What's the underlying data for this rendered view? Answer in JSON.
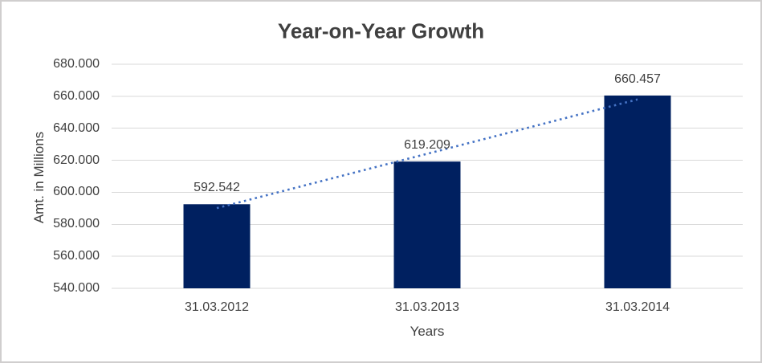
{
  "chart_data": {
    "type": "bar",
    "title": "Year-on-Year Growth",
    "xlabel": "Years",
    "ylabel": "Amt. in Millions",
    "categories": [
      "31.03.2012",
      "31.03.2013",
      "31.03.2014"
    ],
    "values": [
      592542,
      619209,
      660457
    ],
    "data_labels": [
      "592.542",
      "619.209",
      "660.457"
    ],
    "ylim": [
      540000,
      680000
    ],
    "ytick_step": 20000,
    "ytick_labels": [
      "540.000",
      "560.000",
      "580.000",
      "600.000",
      "620.000",
      "640.000",
      "660.000",
      "680.000"
    ],
    "grid": "horizontal",
    "legend": "none",
    "trendline": {
      "type": "linear",
      "style": "dotted",
      "color": "#4472C4"
    },
    "colors": {
      "bar": "#002060",
      "gridline": "#D9D9D9",
      "text": "#404040",
      "chart_border": "#D0CECE",
      "background": "#FFFFFF"
    }
  }
}
